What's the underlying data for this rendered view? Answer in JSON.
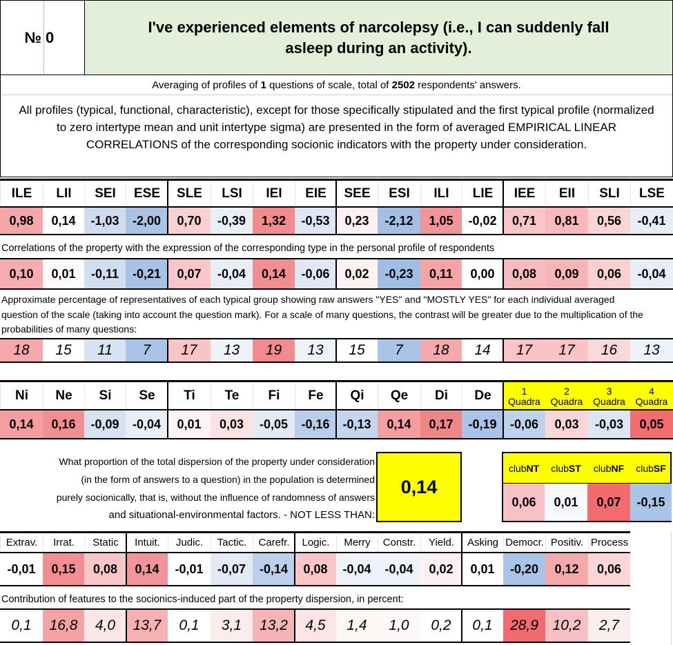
{
  "header": {
    "number_label": "№",
    "number_value": "0",
    "title": "I've experienced elements of narcolepsy (i.e., I can suddenly fall asleep during an activity)."
  },
  "summary": {
    "averaging_pre": "Averaging of profiles of ",
    "questions_count": "1",
    "averaging_mid": " questions of scale, total of ",
    "respondents_count": "2502",
    "averaging_post": " respondents' answers.",
    "explanation": "All profiles (typical, functional, characteristic), except for those specifically stipulated and the first typical profile (normalized to zero intertype mean and unit intertype sigma) are presented in the form of averaged EMPIRICAL LINEAR CORRELATIONS of the corresponding socionic indicators with the property under consideration."
  },
  "types": {
    "headers": [
      "ILE",
      "LII",
      "SEI",
      "ESE",
      "SLE",
      "LSI",
      "IEI",
      "EIE",
      "SEE",
      "ESI",
      "ILI",
      "LIE",
      "IEE",
      "EII",
      "SLI",
      "LSE"
    ],
    "profile": [
      "0,98",
      "0,14",
      "-1,03",
      "-2,00",
      "0,70",
      "-0,39",
      "1,32",
      "-0,53",
      "0,23",
      "-2,12",
      "1,05",
      "-0,02",
      "0,71",
      "0,81",
      "0,56",
      "-0,41"
    ],
    "profile_colors": [
      "#f4a6a8",
      "#ffffff",
      "#cfdcef",
      "#a9c4e6",
      "#fbd0d2",
      "#e9eff8",
      "#f28b8e",
      "#dde6f3",
      "#fdf0f0",
      "#a3bfe4",
      "#f29598",
      "#ffffff",
      "#f9c6c8",
      "#f7b9bb",
      "#fbd4d6",
      "#e6edf7"
    ],
    "corr_caption": "Correlations of the property with the expression of the corresponding type in the personal profile of respondents",
    "corr": [
      "0,10",
      "0,01",
      "-0,11",
      "-0,21",
      "0,07",
      "-0,04",
      "0,14",
      "-0,06",
      "0,02",
      "-0,23",
      "0,11",
      "0,00",
      "0,08",
      "0,09",
      "0,06",
      "-0,04"
    ],
    "corr_colors": [
      "#f6adaf",
      "#fefafa",
      "#d1def0",
      "#a7c2e5",
      "#f9c7c9",
      "#e8eef7",
      "#f28e91",
      "#dfe7f4",
      "#fdf2f2",
      "#a0bde3",
      "#f5a4a6",
      "#ffffff",
      "#f8bcbe",
      "#f7b5b7",
      "#fad0d2",
      "#e8eef7"
    ],
    "pct_caption": "Approximate percentage of representatives of each typical group showing raw answers \"YES\" and \"MOSTLY YES\" for each individual averaged question of the scale (taking into account the question mark). For a scale of many questions, the contrast will be greater due to the multiplication of the probabilities of many questions:",
    "pct": [
      "18",
      "15",
      "11",
      "7",
      "17",
      "13",
      "19",
      "13",
      "15",
      "7",
      "18",
      "14",
      "17",
      "17",
      "16",
      "13"
    ],
    "pct_colors": [
      "#f6a9ab",
      "#ffffff",
      "#d8e3f2",
      "#a9c4e6",
      "#fac4c6",
      "#eef3f9",
      "#f28b8e",
      "#eef3f9",
      "#ffffff",
      "#a9c4e6",
      "#f6a9ab",
      "#ffffff",
      "#fac4c6",
      "#fac4c6",
      "#fbd9da",
      "#eef3f9"
    ]
  },
  "functions": {
    "headers": [
      "Ni",
      "Ne",
      "Si",
      "Se",
      "Ti",
      "Te",
      "Fi",
      "Fe",
      "Qi",
      "Qe",
      "Di",
      "De"
    ],
    "values": [
      "0,14",
      "0,16",
      "-0,09",
      "-0,04",
      "0,01",
      "0,03",
      "-0,05",
      "-0,16",
      "-0,13",
      "0,14",
      "0,17",
      "-0,19"
    ],
    "colors": [
      "#f49ea0",
      "#f28f92",
      "#d6e1f1",
      "#e8eef7",
      "#fdf5f5",
      "#fbe2e3",
      "#e3eaf5",
      "#b7cdea",
      "#c4d6ed",
      "#f49ea0",
      "#f08588",
      "#a9c4e6"
    ],
    "quadra_num": [
      "1",
      "2",
      "3",
      "4"
    ],
    "quadra_word": "Quadra",
    "quadra_values": [
      "-0,06",
      "0,03",
      "-0,03",
      "0,05"
    ],
    "quadra_colors": [
      "#bfd2eb",
      "#fad6d7",
      "#dbe5f3",
      "#f26d70"
    ],
    "quadra_header_color": "#ffff00"
  },
  "dispersion": {
    "text": [
      "What proportion of the total dispersion of the property under consideration",
      "(in the form of answers to a question) in the population is determined",
      "purely socionically, that is, without the influence of randomness of answers",
      "and situational-environmental factors. - NOT LESS THAN:"
    ],
    "value": "0,14",
    "box_color": "#ffff00"
  },
  "clubs": {
    "prefix": "club",
    "names": [
      "NT",
      "ST",
      "NF",
      "SF"
    ],
    "values": [
      "0,06",
      "0,01",
      "0,07",
      "-0,15"
    ],
    "colors": [
      "#f8c2c4",
      "#f5f8fc",
      "#f26b6e",
      "#a9c4e6"
    ]
  },
  "traits": {
    "headers": [
      "Extrav.",
      "Irrat.",
      "Static",
      "Intuit.",
      "Judic.",
      "Tactic.",
      "Carefr.",
      "Logic.",
      "Merry",
      "Constr.",
      "Yield.",
      "Asking",
      "Democr.",
      "Positiv.",
      "Process"
    ],
    "values": [
      "-0,01",
      "0,15",
      "0,08",
      "0,14",
      "-0,01",
      "-0,07",
      "-0,14",
      "0,08",
      "-0,04",
      "-0,04",
      "0,02",
      "0,01",
      "-0,20",
      "0,12",
      "0,06"
    ],
    "colors": [
      "#ffffff",
      "#f28e91",
      "#f9c6c8",
      "#f39598",
      "#ffffff",
      "#e3eaf5",
      "#bcd0eb",
      "#f9c6c8",
      "#eef3f9",
      "#eef3f9",
      "#fdf0f0",
      "#ffffff",
      "#a9c4e6",
      "#f5a9ab",
      "#fbd6d7"
    ],
    "contrib_caption": "Contribution of features to the socionics-induced part of the property dispersion, in percent:",
    "contrib": [
      "0,1",
      "16,8",
      "4,0",
      "13,7",
      "0,1",
      "3,1",
      "13,2",
      "4,5",
      "1,4",
      "1,0",
      "0,2",
      "0,1",
      "28,9",
      "10,2",
      "2,7"
    ],
    "contrib_colors": [
      "#ffffff",
      "#f4a3a5",
      "#fde6e7",
      "#f6b1b3",
      "#ffffff",
      "#fdeced",
      "#f6b4b6",
      "#fde4e5",
      "#fff6f6",
      "#fff8f8",
      "#ffffff",
      "#ffffff",
      "#f26b6e",
      "#f8c0c2",
      "#fdeeee"
    ]
  },
  "colors": {
    "title_bg": "#e2efd9",
    "border": "#000000"
  }
}
